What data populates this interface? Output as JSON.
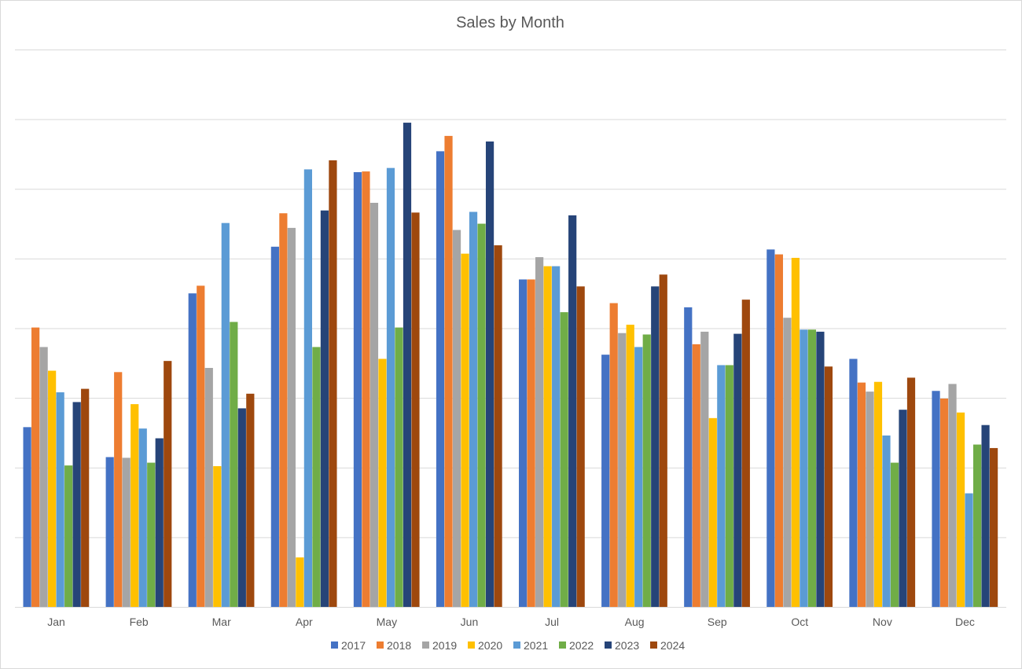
{
  "chart_data": {
    "type": "bar",
    "title": "Sales by Month",
    "xlabel": "",
    "ylabel": "",
    "ylim": [
      0,
      8
    ],
    "grid": true,
    "legend_position": "bottom",
    "categories": [
      "Jan",
      "Feb",
      "Mar",
      "Apr",
      "May",
      "Jun",
      "Jul",
      "Aug",
      "Sep",
      "Oct",
      "Nov",
      "Dec"
    ],
    "series": [
      {
        "name": "2017",
        "color": "#4472C4",
        "values": [
          2.58,
          2.15,
          4.5,
          5.17,
          6.24,
          6.54,
          4.7,
          3.62,
          4.3,
          5.13,
          3.56,
          3.1
        ]
      },
      {
        "name": "2018",
        "color": "#ED7D31",
        "values": [
          4.01,
          3.37,
          4.61,
          5.65,
          6.25,
          6.76,
          4.7,
          4.36,
          3.77,
          5.06,
          3.22,
          2.99
        ]
      },
      {
        "name": "2019",
        "color": "#A5A5A5",
        "values": [
          3.73,
          2.14,
          3.43,
          5.44,
          5.8,
          5.41,
          5.02,
          3.93,
          3.95,
          4.15,
          3.09,
          3.2
        ]
      },
      {
        "name": "2020",
        "color": "#FFC000",
        "values": [
          3.39,
          2.91,
          2.02,
          0.71,
          3.56,
          5.07,
          4.89,
          4.05,
          2.71,
          5.01,
          3.23,
          2.79
        ]
      },
      {
        "name": "2021",
        "color": "#5B9BD5",
        "values": [
          3.08,
          2.56,
          5.51,
          6.28,
          6.3,
          5.67,
          4.89,
          3.73,
          3.47,
          3.98,
          2.46,
          1.63
        ]
      },
      {
        "name": "2022",
        "color": "#70AD47",
        "values": [
          2.03,
          2.07,
          4.09,
          3.73,
          4.01,
          5.5,
          4.23,
          3.91,
          3.47,
          3.98,
          2.07,
          2.33
        ]
      },
      {
        "name": "2023",
        "color": "#264478",
        "values": [
          2.94,
          2.42,
          2.85,
          5.69,
          6.95,
          6.68,
          5.62,
          4.6,
          3.92,
          3.95,
          2.83,
          2.61
        ]
      },
      {
        "name": "2024",
        "color": "#9E480E",
        "values": [
          3.13,
          3.53,
          3.06,
          6.41,
          5.66,
          5.19,
          4.6,
          4.77,
          4.41,
          3.45,
          3.29,
          2.28
        ]
      }
    ]
  }
}
